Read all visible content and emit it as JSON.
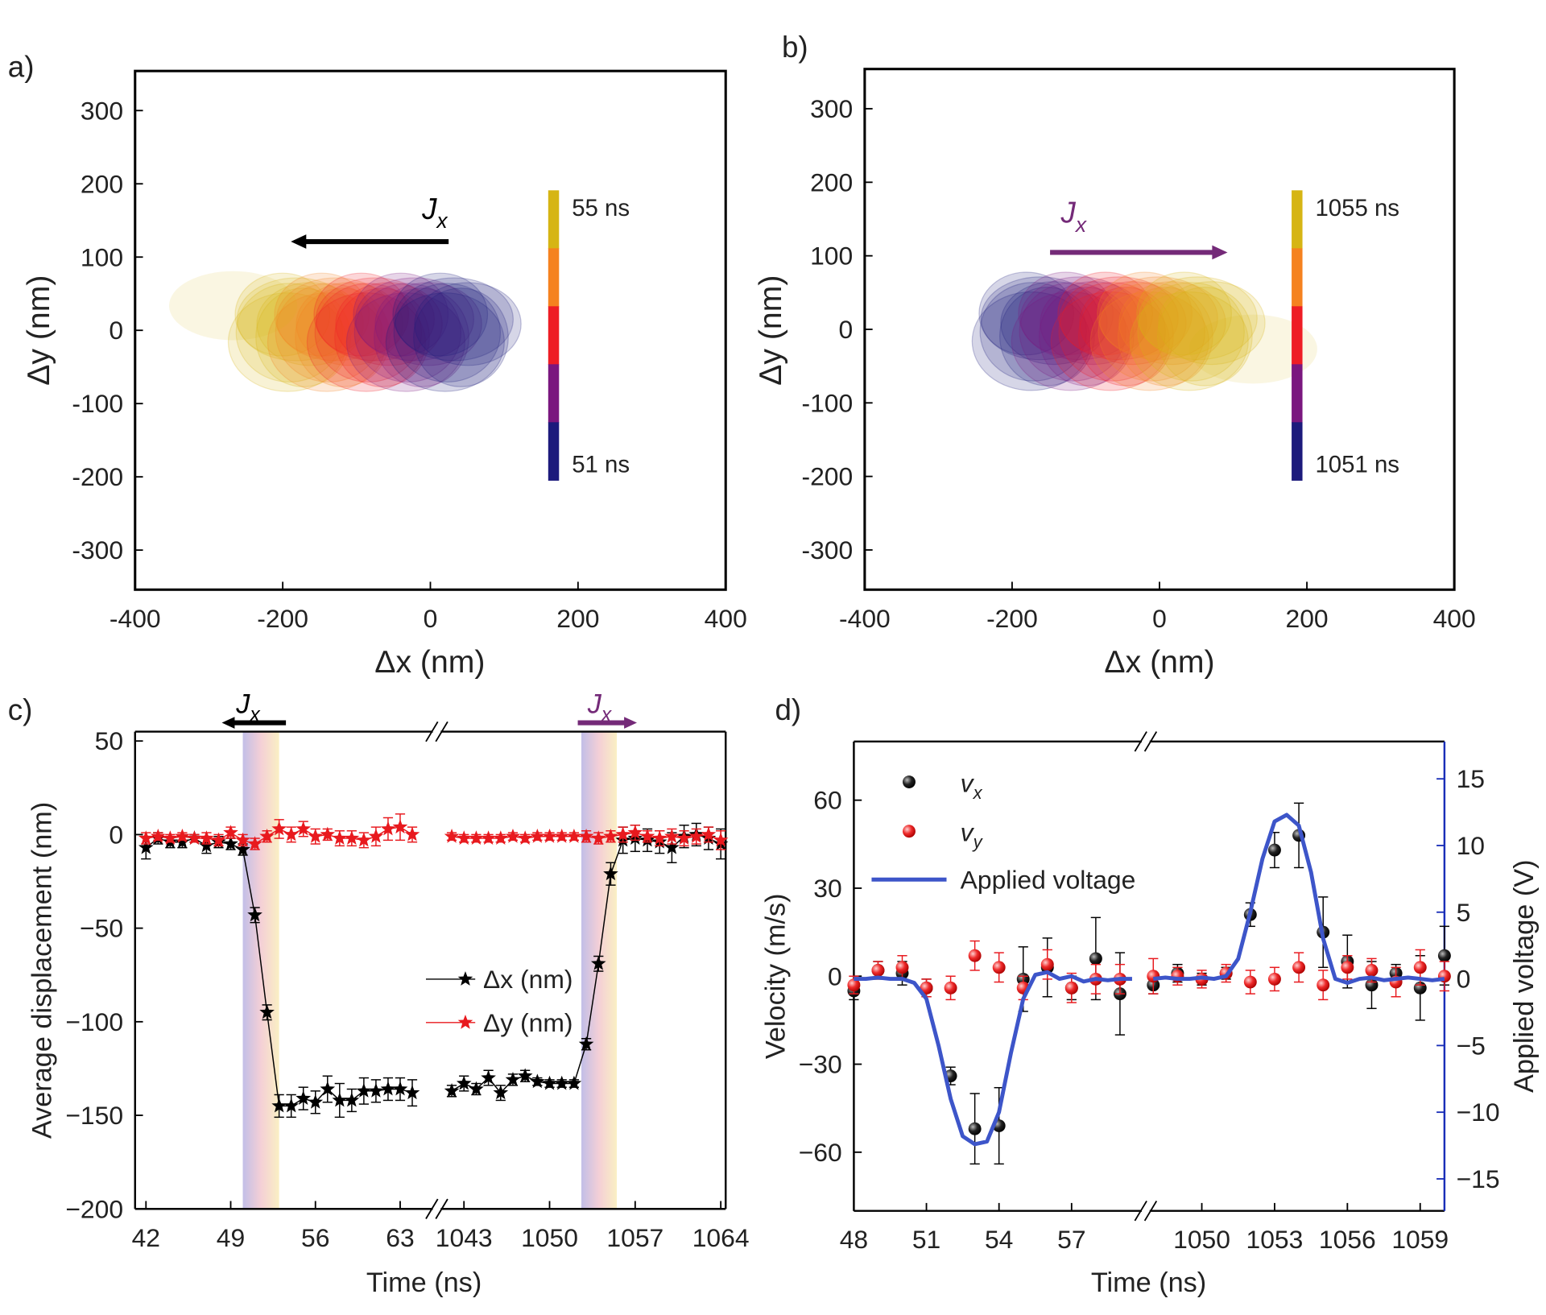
{
  "chart_data": [
    {
      "type": "map",
      "panel": "a)",
      "xlabel": "Δx (nm)",
      "ylabel": "Δy (nm)",
      "xlim": [
        -400,
        400
      ],
      "xticks": [
        -400,
        -200,
        0,
        200,
        400
      ],
      "ylim": [
        -354,
        354
      ],
      "yticks": [
        -300,
        -200,
        -100,
        0,
        100,
        200,
        300
      ],
      "arrow_label": {
        "main": "J",
        "sub": "x"
      },
      "arrow_direction": "left",
      "arrow_color": "#000000",
      "colorbar": {
        "labels": [
          "55 ns",
          "51 ns"
        ],
        "colors": [
          "#d6b514",
          "#f5821f",
          "#ee1d25",
          "#7a177f",
          "#1c1a7c"
        ]
      },
      "blob_order": "left-to-right-late-to-early"
    },
    {
      "type": "map",
      "panel": "b)",
      "xlabel": "Δx (nm)",
      "ylabel": "Δy (nm)",
      "xlim": [
        -400,
        400
      ],
      "xticks": [
        -400,
        -200,
        0,
        200,
        400
      ],
      "ylim": [
        -354,
        354
      ],
      "yticks": [
        -300,
        -200,
        -100,
        0,
        100,
        200,
        300
      ],
      "arrow_label": {
        "main": "J",
        "sub": "x"
      },
      "arrow_direction": "right",
      "arrow_color": "#742a78",
      "colorbar": {
        "labels": [
          "1055 ns",
          "1051 ns"
        ],
        "colors": [
          "#d6b514",
          "#f5821f",
          "#ee1d25",
          "#7a177f",
          "#1c1a7c"
        ]
      },
      "blob_order": "left-to-right-early-to-late"
    },
    {
      "type": "line",
      "panel": "c)",
      "xlabel": "Time (ns)",
      "ylabel": "Average displacement (nm)",
      "x_segments": [
        {
          "xlim": [
            41.1,
            65.7
          ],
          "xticks": [
            42,
            49,
            56,
            63
          ]
        },
        {
          "xlim": [
            1041.1,
            1064.4
          ],
          "xticks": [
            1043,
            1050,
            1057,
            1064
          ]
        }
      ],
      "ylim": [
        -200,
        55
      ],
      "yticks": [
        {
          "value": -200,
          "label": "−200"
        },
        {
          "value": -150,
          "label": "−150"
        },
        {
          "value": -100,
          "label": "−100"
        },
        {
          "value": -50,
          "label": "−50"
        },
        0,
        50
      ],
      "shaded_ranges": [
        [
          50,
          53
        ],
        [
          1052.6,
          1055.5
        ]
      ],
      "annotations": [
        {
          "main": "J",
          "sub": "x",
          "direction": "left",
          "color": "#000000"
        },
        {
          "main": "J",
          "sub": "x",
          "direction": "right",
          "color": "#742a78"
        }
      ],
      "series": [
        {
          "name": "Δx (nm)",
          "color": "#000000",
          "x": [
            42,
            43,
            44,
            45,
            46,
            47,
            48,
            49,
            50,
            51,
            52,
            53,
            54,
            55,
            56,
            57,
            58,
            59,
            60,
            61,
            62,
            63,
            64,
            1042,
            1043,
            1044,
            1045,
            1046,
            1047,
            1048,
            1049,
            1050,
            1051,
            1052,
            1053,
            1054,
            1055,
            1056,
            1057,
            1058,
            1059,
            1060,
            1061,
            1062,
            1063,
            1064
          ],
          "values": [
            -7,
            -2,
            -4,
            -4,
            -2,
            -6,
            -4,
            -5,
            -8,
            -43,
            -95,
            -145,
            -145,
            -141,
            -143,
            -136,
            -142,
            -142,
            -137,
            -137,
            -136,
            -136,
            -138,
            -137,
            -133,
            -136,
            -130,
            -138,
            -131,
            -129,
            -132,
            -133,
            -133,
            -133,
            -112,
            -69,
            -21,
            -3,
            -2,
            -3,
            -4,
            -7,
            -1,
            0,
            -2,
            -5
          ],
          "errors": [
            6,
            3,
            3,
            3,
            2,
            4,
            3,
            3,
            3,
            4,
            4,
            6,
            6,
            6,
            6,
            7,
            9,
            6,
            7,
            6,
            6,
            6,
            7,
            3,
            4,
            3,
            4,
            4,
            3,
            3,
            2,
            2,
            2,
            2,
            3,
            4,
            6,
            7,
            7,
            6,
            6,
            8,
            6,
            6,
            6,
            8
          ]
        },
        {
          "name": "Δy (nm)",
          "color": "#e8191e",
          "x": [
            42,
            43,
            44,
            45,
            46,
            47,
            48,
            49,
            50,
            51,
            52,
            53,
            54,
            55,
            56,
            57,
            58,
            59,
            60,
            61,
            62,
            63,
            64,
            1042,
            1043,
            1044,
            1045,
            1046,
            1047,
            1048,
            1049,
            1050,
            1051,
            1052,
            1053,
            1054,
            1055,
            1056,
            1057,
            1058,
            1059,
            1060,
            1061,
            1062,
            1063,
            1064
          ],
          "values": [
            -2,
            -1,
            -2,
            -1,
            -2,
            -2,
            -3,
            1,
            -3,
            -5,
            -1,
            3,
            0,
            3,
            -1,
            0,
            -2,
            -2,
            -3,
            -1,
            3,
            4,
            0,
            -1,
            -2,
            -2,
            -2,
            -2,
            -1,
            -2,
            -1,
            -1,
            -1,
            -1,
            -1,
            -2,
            -1,
            0,
            1,
            -1,
            -2,
            -1,
            -2,
            -1,
            0,
            -3
          ],
          "errors": [
            3,
            2,
            2,
            2,
            2,
            3,
            3,
            3,
            3,
            3,
            3,
            5,
            4,
            4,
            4,
            3,
            4,
            4,
            4,
            5,
            6,
            7,
            4,
            2,
            2,
            2,
            2,
            2,
            2,
            2,
            2,
            2,
            2,
            2,
            3,
            3,
            3,
            4,
            4,
            3,
            4,
            4,
            4,
            4,
            4,
            5
          ]
        }
      ]
    },
    {
      "type": "scatter",
      "panel": "d)",
      "xlabel": "Time (ns)",
      "ylabel": "Velocity (m/s)",
      "y2label": "Applied voltage (V)",
      "y2color": "#1a2fb8",
      "x_segments": [
        {
          "xlim": [
            48,
            59.9
          ],
          "xticks": [
            48,
            51,
            54,
            57
          ]
        },
        {
          "xlim": [
            1047.85,
            1060
          ],
          "xticks": [
            1050,
            1053,
            1056,
            1059
          ]
        }
      ],
      "ylim": [
        -80,
        80
      ],
      "yticks": [
        {
          "value": -60,
          "label": "−60"
        },
        {
          "value": -30,
          "label": "−30"
        },
        0,
        30,
        60
      ],
      "y2lim": [
        -17.4,
        17.8
      ],
      "y2ticks": [
        {
          "value": -15,
          "label": "−15"
        },
        {
          "value": -10,
          "label": "−10"
        },
        {
          "value": -5,
          "label": "−5"
        },
        0,
        5,
        10,
        15
      ],
      "series": [
        {
          "name": "v",
          "name_sub": "x",
          "type": "scatter",
          "color": "#000000",
          "x": [
            48,
            49,
            50,
            51,
            52,
            53,
            54,
            55,
            56,
            57,
            58,
            59,
            1048,
            1049,
            1050,
            1051,
            1052,
            1053,
            1054,
            1055,
            1056,
            1057,
            1058,
            1059,
            1060
          ],
          "values": [
            -5,
            2,
            1,
            -4,
            -34,
            -52,
            -51,
            -1,
            3,
            -4,
            6,
            -6,
            -3,
            1,
            -1,
            1,
            21,
            43,
            48,
            15,
            5,
            -3,
            1,
            -4,
            7
          ],
          "errors": [
            3,
            3,
            4,
            3,
            3,
            12,
            13,
            11,
            10,
            4,
            14,
            14,
            3,
            3,
            2,
            2,
            4,
            6,
            11,
            12,
            9,
            8,
            3,
            11,
            10
          ]
        },
        {
          "name": "v",
          "name_sub": "y",
          "type": "scatter",
          "color": "#e8191e",
          "x": [
            48,
            49,
            50,
            51,
            52,
            53,
            54,
            55,
            56,
            57,
            58,
            59,
            1048,
            1049,
            1050,
            1051,
            1052,
            1053,
            1054,
            1055,
            1056,
            1057,
            1058,
            1059,
            1060
          ],
          "values": [
            -3,
            2,
            3,
            -4,
            -4,
            7,
            3,
            -4,
            4,
            -4,
            -1,
            -1,
            0,
            0,
            -1,
            1,
            -2,
            -1,
            3,
            -3,
            3,
            2,
            -2,
            3,
            0
          ],
          "errors": [
            3,
            3,
            4,
            3,
            4,
            5,
            5,
            4,
            5,
            5,
            5,
            5,
            6,
            3,
            3,
            3,
            4,
            4,
            5,
            5,
            4,
            4,
            5,
            6,
            5
          ]
        },
        {
          "name": "Applied voltage",
          "type": "line",
          "axis": "y2",
          "color": "#3d55c9",
          "x": [
            48,
            48.5,
            49,
            49.5,
            50,
            50.5,
            51,
            51.5,
            52,
            52.5,
            53,
            53.5,
            54,
            54.5,
            55,
            55.5,
            56,
            56.5,
            57,
            57.5,
            58,
            58.5,
            59,
            59.5,
            1048,
            1048.5,
            1049,
            1049.5,
            1050,
            1050.5,
            1051,
            1051.5,
            1052,
            1052.5,
            1053,
            1053.5,
            1054,
            1054.5,
            1055,
            1055.5,
            1056,
            1056.5,
            1057,
            1057.5,
            1058,
            1058.5,
            1059,
            1059.5,
            1060
          ],
          "values": [
            0,
            0,
            0.1,
            0,
            0,
            -0.3,
            -1.5,
            -5,
            -9,
            -11.8,
            -12.4,
            -12.2,
            -10,
            -5.5,
            -1.5,
            0.3,
            0.5,
            0,
            0.2,
            -0.2,
            0,
            -0.1,
            0,
            0,
            0,
            0.1,
            0,
            0,
            0.1,
            0,
            0.2,
            1.5,
            5,
            9,
            11.8,
            12.3,
            11.5,
            8,
            3,
            0,
            -0.3,
            0,
            0.1,
            -0.1,
            0,
            0.1,
            0,
            -0.1,
            0
          ]
        }
      ]
    }
  ]
}
